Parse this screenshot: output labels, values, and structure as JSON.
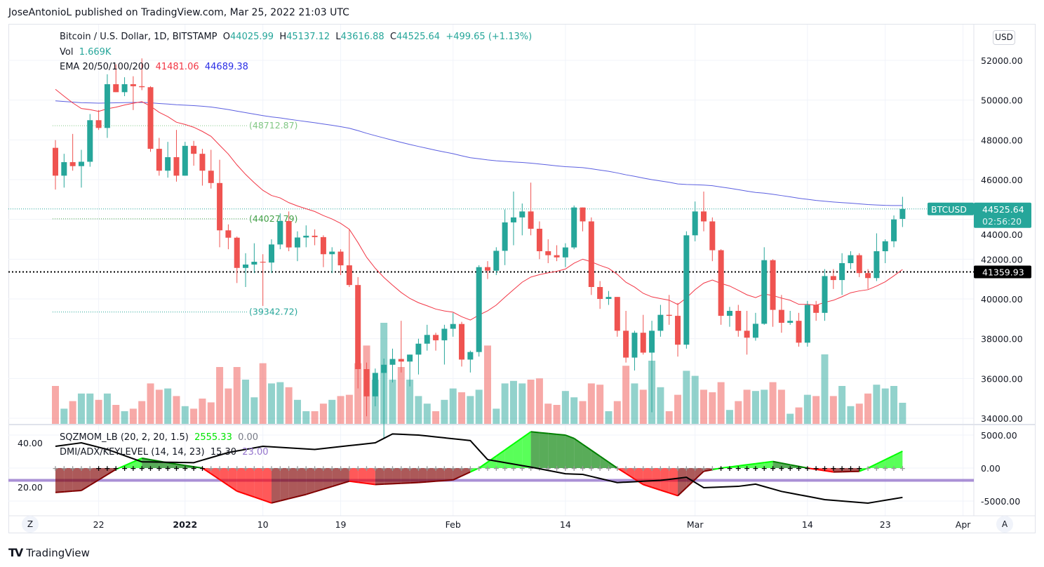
{
  "caption": "JoseAntonioL published on TradingView.com, Mar 25, 2022 21:03 UTC",
  "legend": {
    "symbol": "Bitcoin / U.S. Dollar, 1D, BITSTAMP",
    "o_label": "O",
    "o": "44025.99",
    "h_label": "H",
    "h": "45137.12",
    "l_label": "L",
    "l": "43616.88",
    "c_label": "C",
    "c": "44525.64",
    "change": "+499.65 (+1.13%)",
    "vol_label": "Vol",
    "vol": "1.669K",
    "ema_label": "EMA 20/50/100/200",
    "ema1": "41481.06",
    "ema2": "44689.38",
    "sqz_label": "SQZMOM_LB (20, 2, 20, 1.5)",
    "sqz_val": "2555.33",
    "sqz_val2": "0.00",
    "dmi_label": "DMI/ADX/KEYLEVEL (14, 14, 23)",
    "adx_val": "15.30",
    "key_val": "23.00"
  },
  "currency_button": "USD",
  "z_button": "Z",
  "a_button": "A",
  "brand": "TradingView",
  "price_tag": {
    "symbol": "BTCUSD",
    "price": "44525.64",
    "countdown": "02:56:20"
  },
  "level_tag": "41359.93",
  "levels": [
    {
      "value": 48712.87,
      "label": "(48712.87)",
      "color": "#81c784"
    },
    {
      "value": 44027.79,
      "label": "(44027.79)",
      "color": "#43a047"
    },
    {
      "value": 39342.72,
      "label": "(39342.72)",
      "color": "#26a69a"
    }
  ],
  "colors": {
    "up": "#26a69a",
    "down": "#ef5350",
    "ema20": "#f23645",
    "ema200": "#5b5fe0",
    "keylevel": "#9575cd",
    "adx": "#000000"
  },
  "chart_data": [
    {
      "type": "candlestick",
      "title": "Bitcoin / U.S. Dollar, 1D, BITSTAMP",
      "first_date": "2021-12-17",
      "last_date": "2022-03-25",
      "price_axis": {
        "ticks": [
          34000,
          36000,
          38000,
          40000,
          42000,
          44000,
          46000,
          48000,
          50000,
          52000
        ],
        "labels": [
          "34000.00",
          "36000.00",
          "38000.00",
          "40000.00",
          "42000.00",
          "44000.00",
          "46000.00",
          "48000.00",
          "50000.00",
          "52000.00"
        ],
        "range": [
          33700,
          53000
        ]
      },
      "time_axis": [
        {
          "label": "22",
          "day": 5,
          "bold": false
        },
        {
          "label": "2022",
          "day": 15,
          "bold": true
        },
        {
          "label": "10",
          "day": 24,
          "bold": false
        },
        {
          "label": "19",
          "day": 33,
          "bold": false
        },
        {
          "label": "Feb",
          "day": 46,
          "bold": false
        },
        {
          "label": "14",
          "day": 59,
          "bold": false
        },
        {
          "label": "Mar",
          "day": 74,
          "bold": false
        },
        {
          "label": "14",
          "day": 87,
          "bold": false
        },
        {
          "label": "23",
          "day": 96,
          "bold": false
        },
        {
          "label": "Apr",
          "day": 105,
          "bold": false
        }
      ],
      "ohlc": [
        [
          47600,
          47990,
          45500,
          46200
        ],
        [
          46200,
          47300,
          45600,
          46880
        ],
        [
          46880,
          48300,
          46450,
          46680
        ],
        [
          46680,
          47500,
          45600,
          46900
        ],
        [
          46900,
          49300,
          46650,
          48990
        ],
        [
          48990,
          49500,
          48500,
          48600
        ],
        [
          48600,
          51300,
          48100,
          50800
        ],
        [
          50800,
          51800,
          50400,
          50400
        ],
        [
          50400,
          51150,
          50200,
          50800
        ],
        [
          50800,
          51200,
          49500,
          50700
        ],
        [
          50700,
          52100,
          50500,
          50650
        ],
        [
          50650,
          50700,
          47400,
          47550
        ],
        [
          47550,
          48100,
          46200,
          46450
        ],
        [
          46450,
          47900,
          46100,
          47130
        ],
        [
          47130,
          48500,
          45900,
          46200
        ],
        [
          46200,
          47900,
          46200,
          47700
        ],
        [
          47700,
          47950,
          46700,
          47300
        ],
        [
          47300,
          47550,
          45700,
          46450
        ],
        [
          46450,
          47500,
          45550,
          45830
        ],
        [
          45830,
          47000,
          42600,
          43450
        ],
        [
          43450,
          43750,
          42500,
          43080
        ],
        [
          43080,
          43140,
          40800,
          41560
        ],
        [
          41560,
          42300,
          40600,
          41730
        ],
        [
          41730,
          42800,
          41300,
          41870
        ],
        [
          41870,
          42250,
          39650,
          41830
        ],
        [
          41830,
          43000,
          41300,
          42740
        ],
        [
          42740,
          44300,
          42500,
          43920
        ],
        [
          43920,
          44400,
          42400,
          42590
        ],
        [
          42590,
          43400,
          41900,
          43090
        ],
        [
          43090,
          43700,
          42600,
          43180
        ],
        [
          43180,
          43500,
          42700,
          43110
        ],
        [
          43110,
          43200,
          41600,
          42250
        ],
        [
          42250,
          42600,
          41300,
          42380
        ],
        [
          42380,
          42500,
          41200,
          41690
        ],
        [
          41690,
          43500,
          40600,
          40700
        ],
        [
          40700,
          41100,
          35500,
          36470
        ],
        [
          36470,
          36800,
          34100,
          35100
        ],
        [
          35100,
          36500,
          34600,
          36280
        ],
        [
          36280,
          37000,
          33000,
          36690
        ],
        [
          36690,
          37500,
          35800,
          36980
        ],
        [
          36980,
          38900,
          36300,
          36850
        ],
        [
          36850,
          37200,
          35600,
          37200
        ],
        [
          37200,
          38000,
          36200,
          37750
        ],
        [
          37750,
          38700,
          37400,
          38190
        ],
        [
          38190,
          38300,
          37400,
          37920
        ],
        [
          37920,
          38700,
          36700,
          38500
        ],
        [
          38500,
          39300,
          38100,
          38740
        ],
        [
          38740,
          38850,
          36600,
          36950
        ],
        [
          36950,
          37400,
          36300,
          37330
        ],
        [
          37330,
          41700,
          37100,
          41600
        ],
        [
          41600,
          41900,
          41000,
          41420
        ],
        [
          41420,
          42600,
          41200,
          42420
        ],
        [
          42420,
          44500,
          41700,
          43850
        ],
        [
          43850,
          45400,
          42700,
          44100
        ],
        [
          44100,
          44800,
          43200,
          44400
        ],
        [
          44400,
          45850,
          43200,
          43530
        ],
        [
          43530,
          43900,
          42000,
          42400
        ],
        [
          42400,
          43000,
          41800,
          42200
        ],
        [
          42200,
          42700,
          41900,
          42090
        ],
        [
          42090,
          42800,
          41600,
          42590
        ],
        [
          42590,
          44700,
          42500,
          44600
        ],
        [
          44600,
          44600,
          43400,
          43900
        ],
        [
          43900,
          44100,
          40200,
          40600
        ],
        [
          40600,
          40900,
          39500,
          40000
        ],
        [
          40000,
          40400,
          39700,
          40100
        ],
        [
          40100,
          40100,
          38100,
          38400
        ],
        [
          38400,
          39400,
          36800,
          37050
        ],
        [
          37050,
          38400,
          36400,
          38300
        ],
        [
          38300,
          39200,
          37200,
          37300
        ],
        [
          37300,
          38900,
          34300,
          38400
        ],
        [
          38400,
          39700,
          38100,
          39200
        ],
        [
          39200,
          40200,
          38700,
          39150
        ],
        [
          39150,
          39800,
          37100,
          37700
        ],
        [
          37700,
          43400,
          37500,
          43200
        ],
        [
          43200,
          44900,
          42900,
          44400
        ],
        [
          44400,
          45400,
          43400,
          43900
        ],
        [
          43900,
          44100,
          41900,
          42450
        ],
        [
          42450,
          42500,
          38700,
          39150
        ],
        [
          39150,
          39600,
          38600,
          39400
        ],
        [
          39400,
          39700,
          38100,
          38400
        ],
        [
          38400,
          39400,
          37200,
          38050
        ],
        [
          38050,
          39300,
          37900,
          38750
        ],
        [
          38750,
          42600,
          38700,
          41950
        ],
        [
          41950,
          42000,
          38600,
          39450
        ],
        [
          39450,
          40200,
          38300,
          38800
        ],
        [
          38800,
          39400,
          38700,
          38900
        ],
        [
          38900,
          39300,
          37600,
          37800
        ],
        [
          37800,
          39900,
          37600,
          39700
        ],
        [
          39700,
          39900,
          38900,
          39300
        ],
        [
          39300,
          41500,
          38900,
          41150
        ],
        [
          41150,
          41500,
          40500,
          40950
        ],
        [
          40950,
          42300,
          40200,
          41800
        ],
        [
          41800,
          42400,
          41500,
          42200
        ],
        [
          42200,
          42300,
          41100,
          41300
        ],
        [
          41300,
          41500,
          40500,
          41050
        ],
        [
          41050,
          43300,
          40900,
          42400
        ],
        [
          42400,
          43000,
          41800,
          42900
        ],
        [
          42900,
          44200,
          42600,
          44000
        ],
        [
          44025.99,
          45137.12,
          43616.88,
          44525.64
        ]
      ],
      "volume_k": [
        3.0,
        1.2,
        1.8,
        2.4,
        2.4,
        1.9,
        2.4,
        1.5,
        1.0,
        1.2,
        1.8,
        3.2,
        2.7,
        2.8,
        2.2,
        1.4,
        1.2,
        2.0,
        1.7,
        4.5,
        2.8,
        4.5,
        3.5,
        2.1,
        4.8,
        3.2,
        3.3,
        2.9,
        1.9,
        1.0,
        1.0,
        1.6,
        1.9,
        2.2,
        2.3,
        4.8,
        6.2,
        3.5,
        8.0,
        3.5,
        4.5,
        3.5,
        2.2,
        1.6,
        1.0,
        1.9,
        2.8,
        2.5,
        2.2,
        2.7,
        6.2,
        1.2,
        3.2,
        3.4,
        3.2,
        3.5,
        3.6,
        1.6,
        1.5,
        2.6,
        2.1,
        1.8,
        3.2,
        3.1,
        1.0,
        1.8,
        4.6,
        3.2,
        2.7,
        5.0,
        2.9,
        1.0,
        2.3,
        4.2,
        3.8,
        2.7,
        2.5,
        3.3,
        1.1,
        1.8,
        2.7,
        2.6,
        2.7,
        3.3,
        2.7,
        0.8,
        1.3,
        2.3,
        2.2,
        5.5,
        2.2,
        3.0,
        1.4,
        1.6,
        2.4,
        3.1,
        2.8,
        3.0,
        1.669
      ],
      "ema20_last": 41481.06,
      "ema200_last": 44689.38,
      "current_level": 41359.93
    },
    {
      "type": "area",
      "title": "SQZMOM_LB (20, 2, 20, 1.5)",
      "right_axis": {
        "ticks": [
          5000,
          0,
          -5000
        ],
        "labels": [
          "5000.00",
          "0.00",
          "-5000.00"
        ]
      },
      "momentum_keypoints": [
        [
          0,
          -3700
        ],
        [
          3,
          -3400
        ],
        [
          7,
          -200
        ],
        [
          10,
          1500
        ],
        [
          13,
          800
        ],
        [
          15,
          400
        ],
        [
          17,
          0
        ],
        [
          21,
          -3500
        ],
        [
          25,
          -5300
        ],
        [
          29,
          -4000
        ],
        [
          34,
          -2000
        ],
        [
          37,
          -2500
        ],
        [
          42,
          -2200
        ],
        [
          46,
          -1800
        ],
        [
          49,
          0
        ],
        [
          55,
          5500
        ],
        [
          59,
          5000
        ],
        [
          60,
          4500
        ],
        [
          65,
          0
        ],
        [
          68,
          -2500
        ],
        [
          72,
          -4200
        ],
        [
          75,
          -500
        ],
        [
          77,
          0
        ],
        [
          83,
          1000
        ],
        [
          87,
          0
        ],
        [
          90,
          -600
        ],
        [
          93,
          -500
        ],
        [
          94,
          0
        ],
        [
          98,
          2555.33
        ]
      ],
      "squeeze_on_ranges": [
        [
          5,
          17
        ],
        [
          77,
          93
        ]
      ]
    },
    {
      "type": "line",
      "title": "DMI/ADX/KEYLEVEL (14, 14, 23)",
      "left_axis": {
        "ticks": [
          40,
          20
        ],
        "labels": [
          "40.00",
          "20.00"
        ]
      },
      "key_level": 23,
      "adx_keypoints": [
        [
          0,
          38.4
        ],
        [
          3,
          40
        ],
        [
          6,
          37
        ],
        [
          10,
          31.4
        ],
        [
          16,
          31
        ],
        [
          20,
          35.6
        ],
        [
          24,
          38.4
        ],
        [
          30,
          37
        ],
        [
          37,
          40
        ],
        [
          39,
          44
        ],
        [
          42,
          43.5
        ],
        [
          48,
          41
        ],
        [
          50,
          32.4
        ],
        [
          55,
          29
        ],
        [
          59,
          26
        ],
        [
          61,
          25.7
        ],
        [
          65,
          22
        ],
        [
          70,
          23
        ],
        [
          73,
          24.4
        ],
        [
          75,
          19.7
        ],
        [
          79,
          20.3
        ],
        [
          81,
          21.3
        ],
        [
          84,
          18
        ],
        [
          89,
          14.3
        ],
        [
          94,
          12.7
        ],
        [
          98,
          15.3
        ]
      ]
    }
  ]
}
